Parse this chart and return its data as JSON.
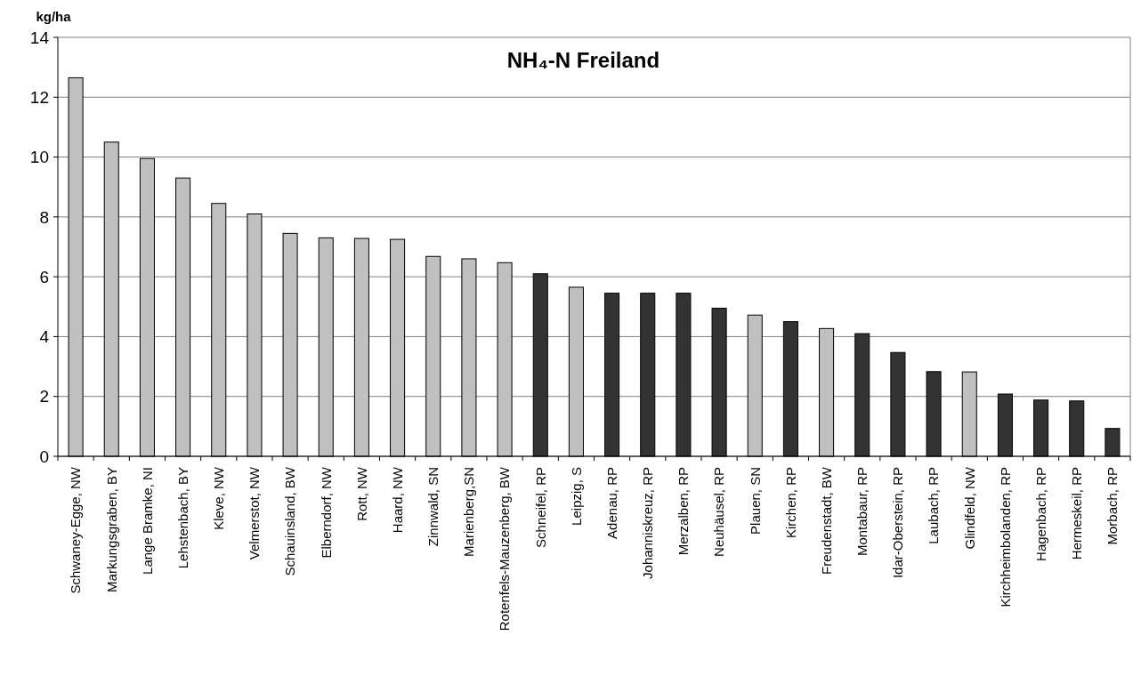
{
  "chart_data": {
    "type": "bar",
    "title": "NH₄-N Freiland",
    "ylabel": "kg/ha",
    "categories": [
      "Schwaney-Egge, NW",
      "Markungsgraben, BY",
      "Lange Bramke, NI",
      "Lehstenbach, BY",
      "Kleve, NW",
      "Velmerstot, NW",
      "Schauinsland, BW",
      "Elberndorf, NW",
      "Rott, NW",
      "Haard, NW",
      "Zinnwald, SN",
      "Marienberg,SN",
      "Rotenfels-Mauzenberg, BW",
      "Schneifel, RP",
      "Leipzig, S",
      "Adenau, RP",
      "Johanniskreuz, RP",
      "Merzalben, RP",
      "Neuhäusel, RP",
      "Plauen, SN",
      "Kirchen, RP",
      "Freudenstadt, BW",
      "Montabaur, RP",
      "Idar-Oberstein, RP",
      "Laubach, RP",
      "Glindfeld, NW",
      "Kirchheimbolanden, RP",
      "Hagenbach, RP",
      "Hermeskeil, RP",
      "Morbach, RP"
    ],
    "values": [
      12.65,
      10.5,
      9.95,
      9.3,
      8.45,
      8.1,
      7.45,
      7.3,
      7.28,
      7.25,
      6.68,
      6.6,
      6.47,
      6.1,
      5.65,
      5.45,
      5.45,
      5.45,
      4.95,
      4.72,
      4.5,
      4.27,
      4.1,
      3.47,
      2.83,
      2.82,
      2.08,
      1.88,
      1.85,
      0.93
    ],
    "colors": [
      "#c0c0c0",
      "#c0c0c0",
      "#c0c0c0",
      "#c0c0c0",
      "#c0c0c0",
      "#c0c0c0",
      "#c0c0c0",
      "#c0c0c0",
      "#c0c0c0",
      "#c0c0c0",
      "#c0c0c0",
      "#c0c0c0",
      "#c0c0c0",
      "#333333",
      "#c0c0c0",
      "#333333",
      "#333333",
      "#333333",
      "#333333",
      "#c0c0c0",
      "#333333",
      "#c0c0c0",
      "#333333",
      "#333333",
      "#333333",
      "#c0c0c0",
      "#333333",
      "#333333",
      "#333333",
      "#333333"
    ],
    "ylim": [
      0,
      14
    ],
    "yticks": [
      0,
      2,
      4,
      6,
      8,
      10,
      12,
      14
    ],
    "grid": "y"
  }
}
